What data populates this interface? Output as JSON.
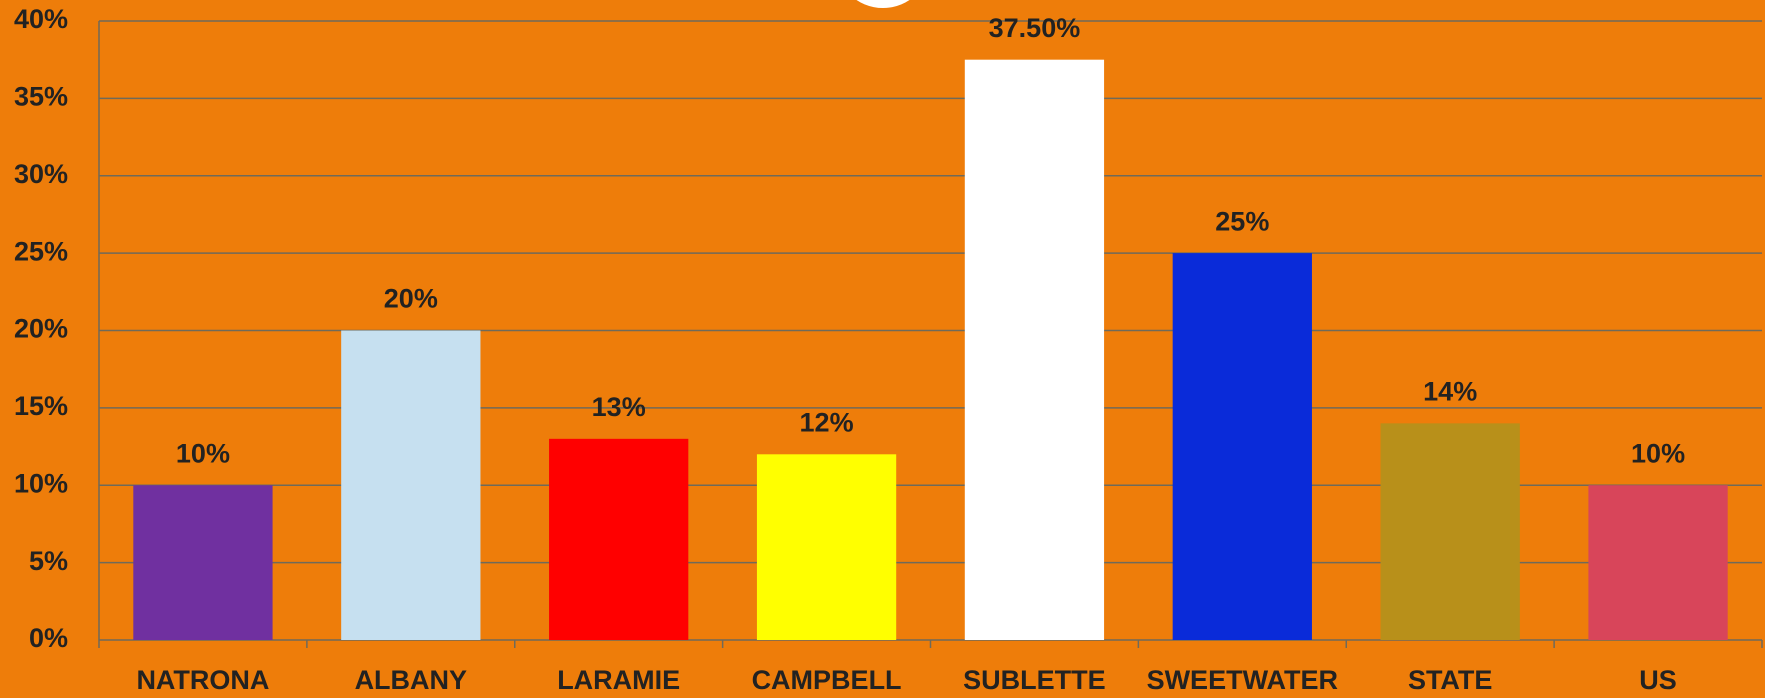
{
  "chart_data": {
    "type": "bar",
    "categories": [
      "NATRONA",
      "ALBANY",
      "LARAMIE",
      "CAMPBELL",
      "SUBLETTE",
      "SWEETWATER",
      "STATE",
      "US"
    ],
    "values": [
      10,
      20,
      13,
      12,
      37.5,
      25,
      14,
      10
    ],
    "value_labels": [
      "10%",
      "20%",
      "13%",
      "12%",
      "37.50%",
      "25%",
      "14%",
      "10%"
    ],
    "colors": [
      "#7030a0",
      "#c6e0f0",
      "#ff0000",
      "#ffff00",
      "#ffffff",
      "#0a2bd9",
      "#b8901a",
      "#d8455a"
    ],
    "ylim": [
      0,
      40
    ],
    "yticks": [
      {
        "value": 0,
        "label": "0%"
      },
      {
        "value": 5,
        "label": "5%"
      },
      {
        "value": 10,
        "label": "10%"
      },
      {
        "value": 15,
        "label": "15%"
      },
      {
        "value": 20,
        "label": "20%"
      },
      {
        "value": 25,
        "label": "25%"
      },
      {
        "value": 30,
        "label": "30%"
      },
      {
        "value": 35,
        "label": "35%"
      },
      {
        "value": 40,
        "label": "40%"
      }
    ],
    "grid": true
  }
}
